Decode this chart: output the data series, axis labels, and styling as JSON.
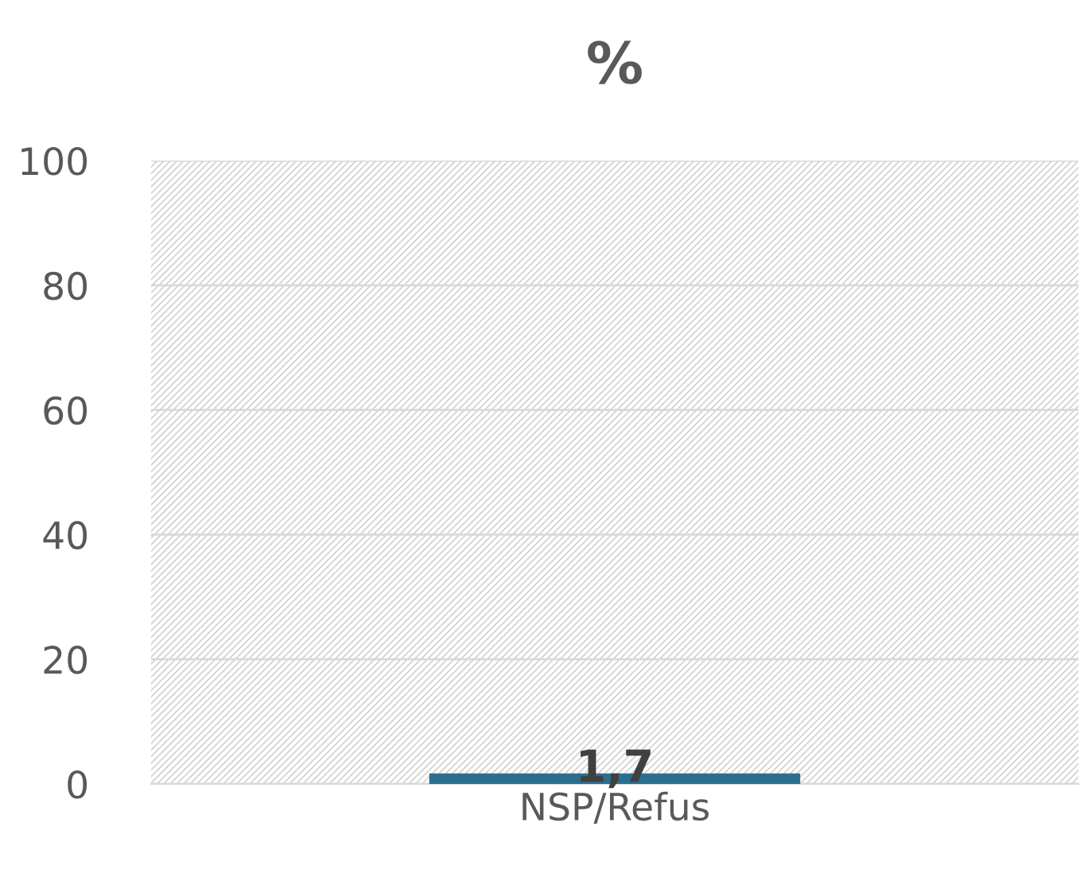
{
  "chart_data": {
    "type": "bar",
    "title": "%",
    "categories": [
      "NSP/Refus"
    ],
    "values": [
      1.7
    ],
    "value_labels": [
      "1,7"
    ],
    "color": "#2a6e90",
    "ylim": [
      0,
      100
    ],
    "yticks": [
      0,
      20,
      40,
      60,
      80,
      100
    ],
    "grid": "y"
  }
}
